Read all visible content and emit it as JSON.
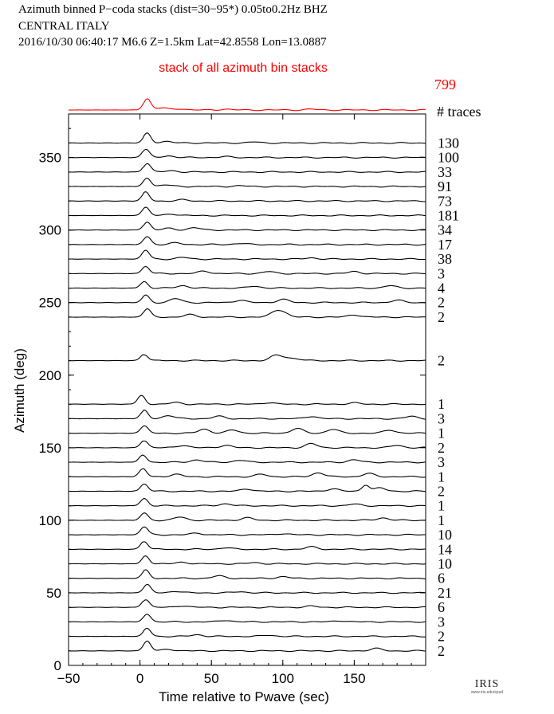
{
  "header": {
    "line1": "Azimuth binned P−coda stacks (dist=30−95*)  0.05to0.2Hz  BHZ",
    "line2": "CENTRAL ITALY",
    "line3": "2016/10/30  06:40:17  M6.6  Z=1.5km Lat=42.8558 Lon=13.0887"
  },
  "colors": {
    "stack": "#ff0000",
    "trace": "#000000",
    "axis": "#000000"
  },
  "logo": {
    "text": "IRIS",
    "url_text": "www.iris.edu/spud"
  },
  "chart_data": {
    "type": "line",
    "title": "stack of all azimuth bin stacks",
    "xlabel": "Time relative to Pwave (sec)",
    "ylabel": "Azimuth (deg)",
    "xlim": [
      -50,
      200
    ],
    "ylim": [
      0,
      380
    ],
    "xticks": [
      -50,
      0,
      50,
      100,
      150
    ],
    "yticks": [
      0,
      50,
      100,
      150,
      200,
      250,
      300,
      350
    ],
    "stack_trace_count": "799",
    "traces_header": "# traces",
    "traces": [
      {
        "azimuth": 360,
        "count": "130",
        "peaks": [
          [
            5,
            12
          ],
          [
            18,
            2
          ],
          [
            80,
            1.2
          ]
        ]
      },
      {
        "azimuth": 350,
        "count": "100",
        "peaks": [
          [
            4,
            10
          ],
          [
            20,
            2
          ],
          [
            60,
            1
          ]
        ]
      },
      {
        "azimuth": 340,
        "count": "33",
        "peaks": [
          [
            5,
            11
          ],
          [
            22,
            1.5
          ]
        ]
      },
      {
        "azimuth": 330,
        "count": "91",
        "peaks": [
          [
            5,
            11
          ],
          [
            18,
            2
          ],
          [
            70,
            1
          ]
        ]
      },
      {
        "azimuth": 320,
        "count": "73",
        "peaks": [
          [
            4,
            11
          ],
          [
            30,
            1.5
          ]
        ]
      },
      {
        "azimuth": 310,
        "count": "181",
        "peaks": [
          [
            4,
            10
          ],
          [
            22,
            2
          ]
        ]
      },
      {
        "azimuth": 300,
        "count": "34",
        "peaks": [
          [
            5,
            10
          ],
          [
            38,
            3
          ],
          [
            20,
            2
          ]
        ]
      },
      {
        "azimuth": 290,
        "count": "17",
        "peaks": [
          [
            5,
            10
          ],
          [
            25,
            2
          ],
          [
            70,
            1.5
          ]
        ]
      },
      {
        "azimuth": 280,
        "count": "38",
        "peaks": [
          [
            4,
            11
          ],
          [
            30,
            2
          ],
          [
            120,
            1.5
          ]
        ]
      },
      {
        "azimuth": 270,
        "count": "3",
        "peaks": [
          [
            4,
            9
          ],
          [
            45,
            3
          ],
          [
            90,
            2.5
          ],
          [
            150,
            2.5
          ]
        ]
      },
      {
        "azimuth": 260,
        "count": "4",
        "peaks": [
          [
            3,
            8
          ],
          [
            30,
            3
          ],
          [
            80,
            2.5
          ],
          [
            175,
            3
          ]
        ]
      },
      {
        "azimuth": 250,
        "count": "2",
        "peaks": [
          [
            4,
            9
          ],
          [
            25,
            5
          ],
          [
            70,
            3
          ],
          [
            100,
            4
          ],
          [
            180,
            3
          ]
        ]
      },
      {
        "azimuth": 240,
        "count": "2",
        "peaks": [
          [
            5,
            10
          ],
          [
            35,
            3
          ],
          [
            95,
            6
          ],
          [
            100,
            5
          ],
          [
            150,
            3
          ]
        ]
      },
      {
        "azimuth": 210,
        "count": "2",
        "peaks": [
          [
            3,
            8
          ],
          [
            95,
            6
          ],
          [
            102,
            3
          ],
          [
            110,
            2
          ]
        ]
      },
      {
        "azimuth": 180,
        "count": "1",
        "peaks": [
          [
            1,
            11
          ],
          [
            25,
            2
          ],
          [
            90,
            2
          ],
          [
            150,
            1.5
          ]
        ]
      },
      {
        "azimuth": 170,
        "count": "3",
        "peaks": [
          [
            3,
            10
          ],
          [
            20,
            4
          ],
          [
            55,
            3
          ],
          [
            120,
            3
          ],
          [
            190,
            3
          ]
        ]
      },
      {
        "azimuth": 160,
        "count": "1",
        "peaks": [
          [
            3,
            9
          ],
          [
            45,
            5
          ],
          [
            65,
            4
          ],
          [
            110,
            6
          ],
          [
            135,
            5
          ],
          [
            175,
            4
          ]
        ]
      },
      {
        "azimuth": 150,
        "count": "2",
        "peaks": [
          [
            3,
            9
          ],
          [
            30,
            3
          ],
          [
            60,
            3
          ],
          [
            120,
            5
          ],
          [
            180,
            3
          ]
        ]
      },
      {
        "azimuth": 140,
        "count": "3",
        "peaks": [
          [
            2,
            9
          ],
          [
            40,
            3
          ],
          [
            70,
            2.5
          ],
          [
            150,
            3
          ]
        ]
      },
      {
        "azimuth": 130,
        "count": "1",
        "peaks": [
          [
            2,
            10
          ],
          [
            25,
            3
          ],
          [
            85,
            3
          ],
          [
            125,
            5
          ],
          [
            160,
            4
          ]
        ]
      },
      {
        "azimuth": 120,
        "count": "2",
        "peaks": [
          [
            3,
            9
          ],
          [
            75,
            3
          ],
          [
            135,
            3
          ],
          [
            158,
            8
          ],
          [
            168,
            4
          ]
        ]
      },
      {
        "azimuth": 110,
        "count": "1",
        "peaks": [
          [
            3,
            9
          ],
          [
            60,
            2.5
          ],
          [
            150,
            2
          ]
        ]
      },
      {
        "azimuth": 100,
        "count": "1",
        "peaks": [
          [
            3,
            9
          ],
          [
            28,
            4
          ],
          [
            75,
            3
          ],
          [
            170,
            3
          ]
        ]
      },
      {
        "azimuth": 90,
        "count": "10",
        "peaks": [
          [
            3,
            10
          ],
          [
            40,
            2
          ],
          [
            100,
            1.5
          ]
        ]
      },
      {
        "azimuth": 80,
        "count": "14",
        "peaks": [
          [
            3,
            10
          ],
          [
            60,
            2
          ],
          [
            120,
            3
          ]
        ]
      },
      {
        "azimuth": 70,
        "count": "10",
        "peaks": [
          [
            4,
            10
          ],
          [
            30,
            2
          ],
          [
            80,
            1.5
          ]
        ]
      },
      {
        "azimuth": 60,
        "count": "6",
        "peaks": [
          [
            4,
            10
          ],
          [
            55,
            3
          ],
          [
            100,
            2
          ]
        ]
      },
      {
        "azimuth": 50,
        "count": "21",
        "peaks": [
          [
            5,
            10
          ],
          [
            25,
            2
          ],
          [
            70,
            1.5
          ]
        ]
      },
      {
        "azimuth": 40,
        "count": "6",
        "peaks": [
          [
            4,
            10
          ],
          [
            30,
            2
          ],
          [
            120,
            1.5
          ]
        ]
      },
      {
        "azimuth": 30,
        "count": "3",
        "peaks": [
          [
            5,
            10
          ],
          [
            60,
            2
          ],
          [
            140,
            1.5
          ]
        ]
      },
      {
        "azimuth": 20,
        "count": "2",
        "peaks": [
          [
            5,
            10
          ],
          [
            40,
            2
          ],
          [
            90,
            1.5
          ]
        ]
      },
      {
        "azimuth": 10,
        "count": "2",
        "peaks": [
          [
            5,
            12
          ],
          [
            20,
            2
          ],
          [
            165,
            3
          ]
        ]
      }
    ],
    "stack": {
      "peaks": [
        [
          5,
          14
        ],
        [
          15,
          2.5
        ],
        [
          28,
          1.5
        ],
        [
          60,
          1
        ],
        [
          120,
          1
        ]
      ]
    }
  }
}
